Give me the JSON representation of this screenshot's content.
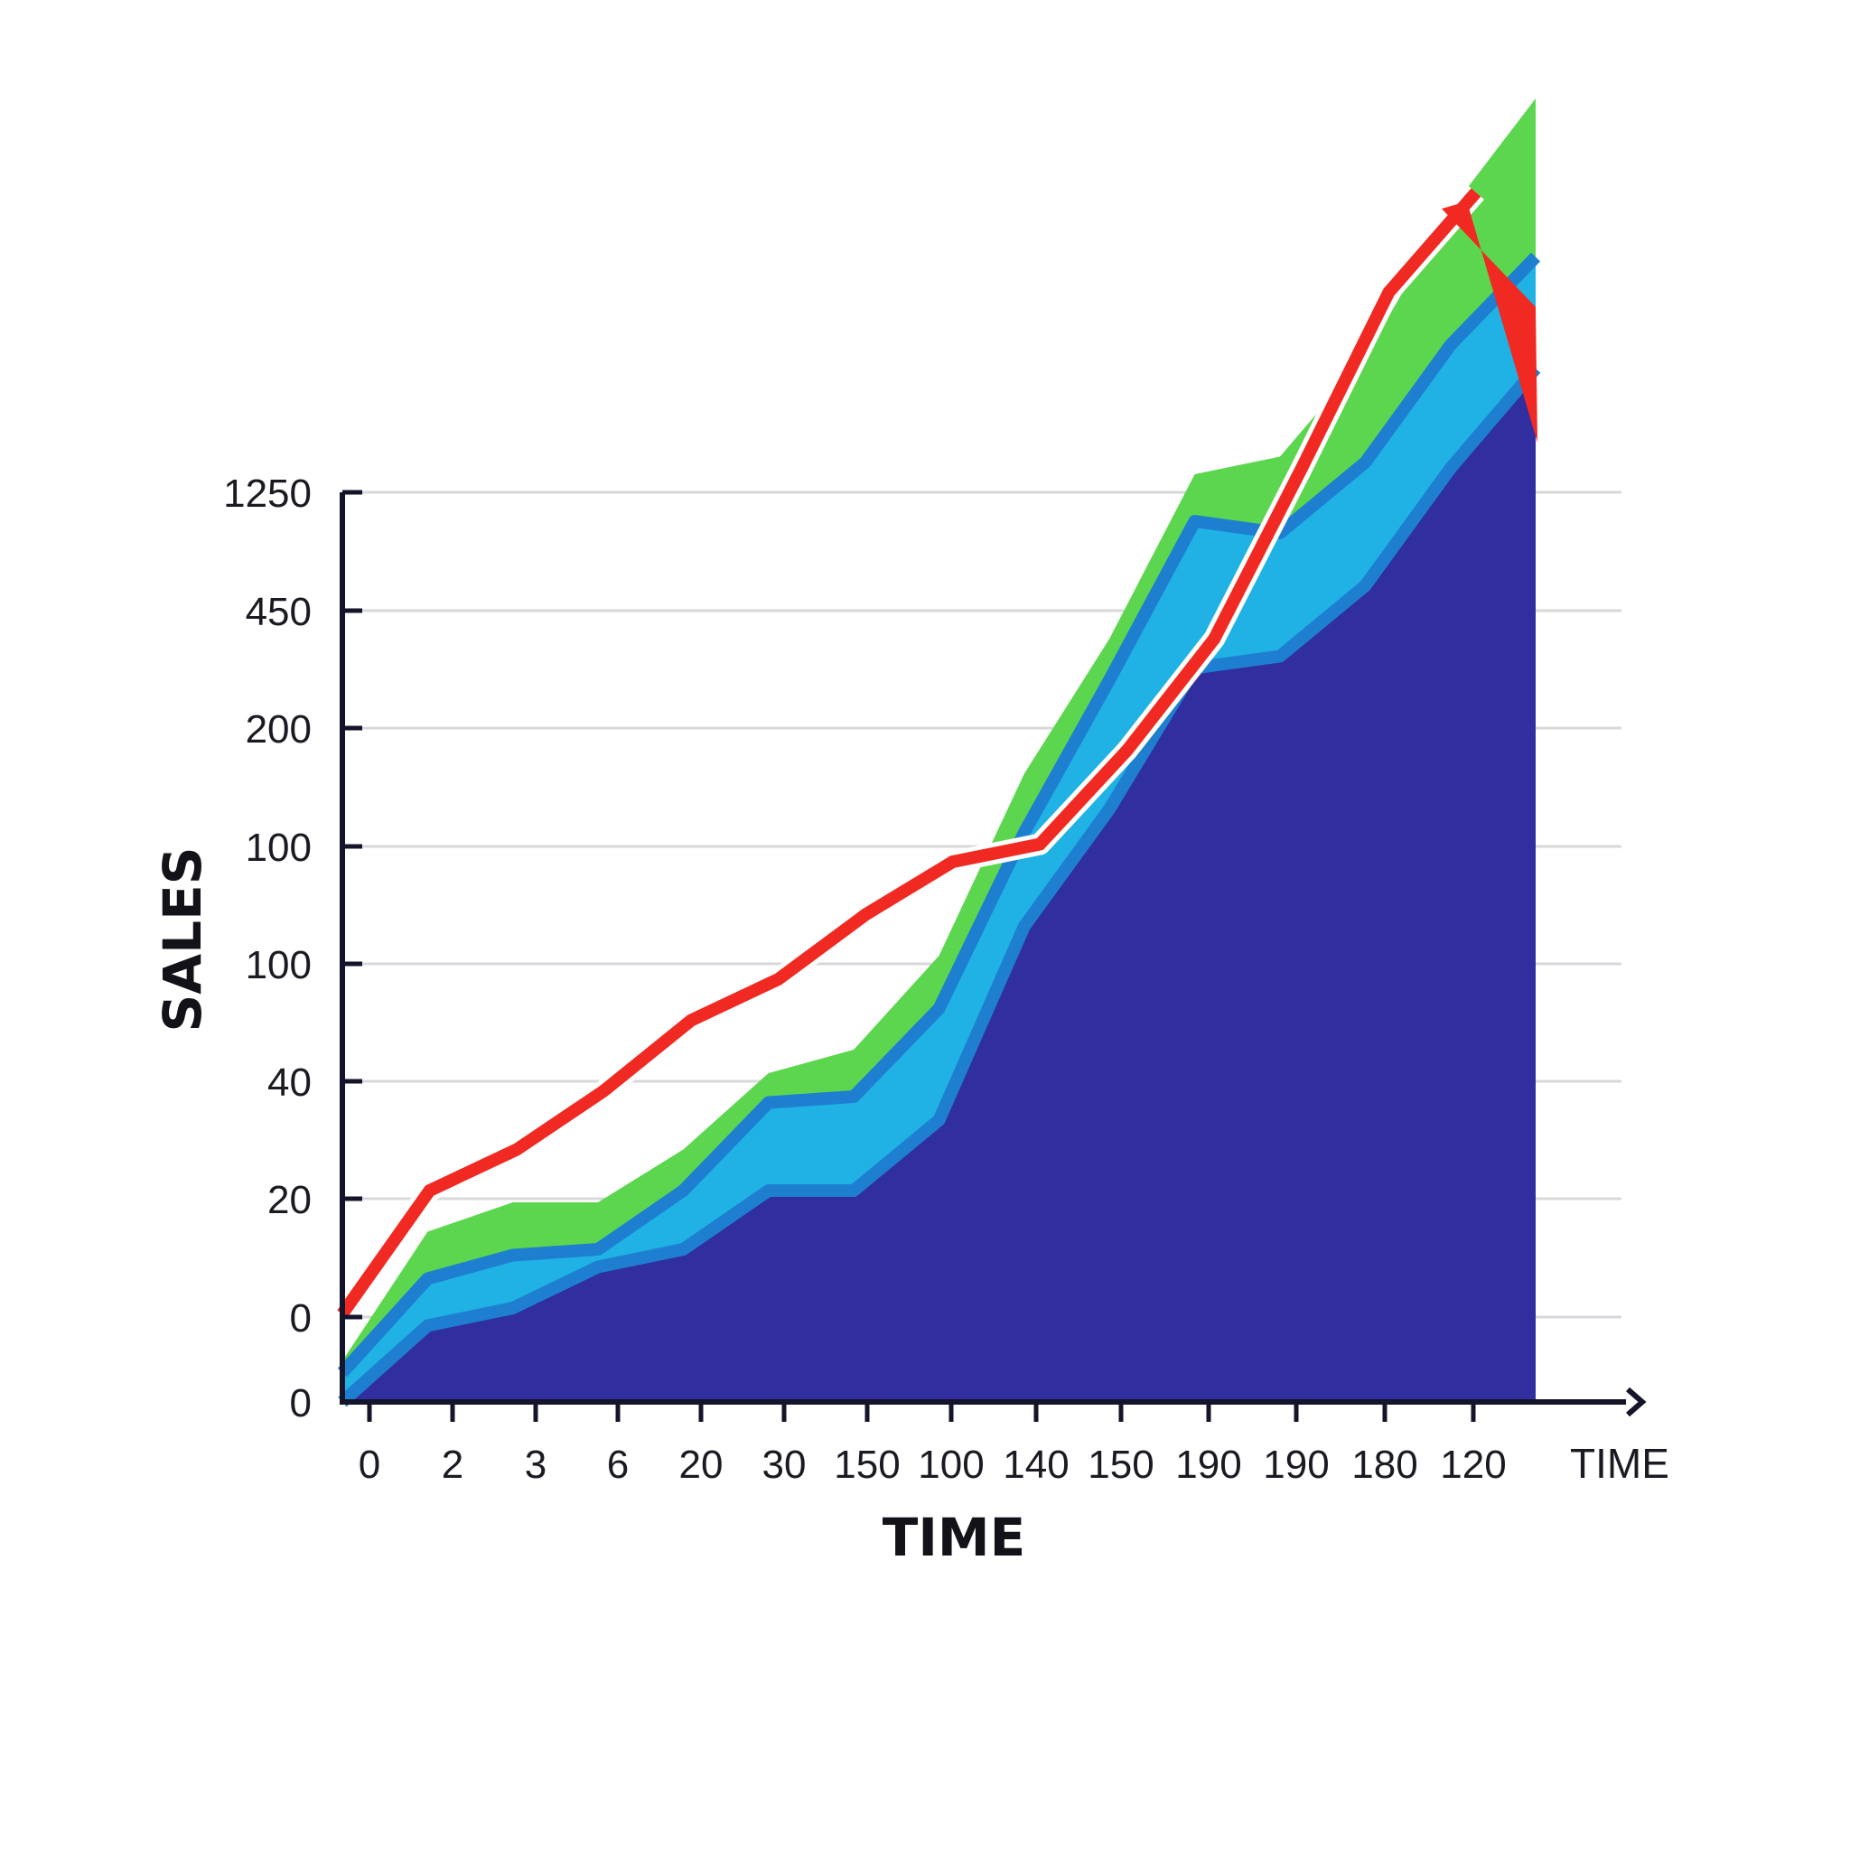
{
  "chart_data": {
    "type": "area",
    "stacked": true,
    "xlabel": "TIME",
    "x_axis_end_label": "TIME",
    "ylabel": "SALES",
    "x_tick_labels": [
      "0",
      "2",
      "3",
      "6",
      "20",
      "30",
      "150",
      "100",
      "140",
      "150",
      "190",
      "190",
      "180",
      "120"
    ],
    "y_tick_labels": [
      "0",
      "0",
      "20",
      "40",
      "100",
      "100",
      "200",
      "450",
      "1250"
    ],
    "grid": true,
    "trend_arrow": true,
    "x": [
      0,
      1,
      2,
      3,
      4,
      5,
      6,
      7,
      8,
      9,
      10,
      11,
      12,
      13,
      14
    ],
    "series": [
      {
        "values": [
          0,
          0.65,
          0.8,
          1.15,
          1.3,
          1.8,
          1.8,
          2.4,
          4.05,
          5.05,
          6.25,
          6.35,
          6.95,
          7.95,
          8.8
        ]
      },
      {
        "values": [
          0.25,
          0.4,
          0.45,
          0.15,
          0.5,
          0.75,
          0.8,
          0.95,
          0.8,
          1.1,
          1.25,
          1.05,
          1.05,
          1.05,
          0.95
        ]
      },
      {
        "values": [
          0.1,
          0.4,
          0.45,
          0.4,
          0.35,
          0.25,
          0.4,
          0.45,
          0.5,
          0.35,
          0.4,
          0.65,
          0.9,
          1.15,
          1.35
        ]
      }
    ],
    "trend_values": [
      0.75,
      1.8,
      2.15,
      2.65,
      3.25,
      3.6,
      4.15,
      4.6,
      4.75,
      5.55,
      6.5,
      7.95,
      9.45,
      10.3
    ],
    "colors": {
      "base_area": "#312ea0",
      "middle_area": "#20b2e4",
      "top_area": "#5dd64f",
      "trend_line": "#f02a22",
      "axis": "#14142a",
      "grid": "#d8d8dc",
      "band_edge": "#1e7fd0"
    }
  }
}
